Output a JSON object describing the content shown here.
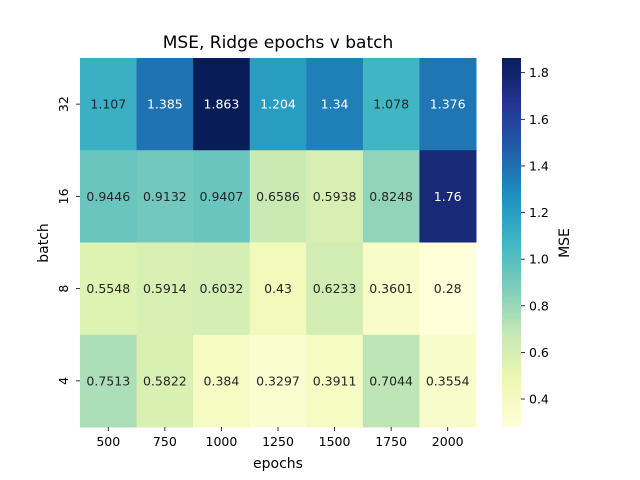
{
  "chart_data": {
    "type": "heatmap",
    "title": "MSE, Ridge epochs v batch",
    "xlabel": "epochs",
    "ylabel": "batch",
    "x_categories": [
      "500",
      "750",
      "1000",
      "1250",
      "1500",
      "1750",
      "2000"
    ],
    "y_categories": [
      "32",
      "16",
      "8",
      "4"
    ],
    "values": [
      [
        1.107,
        1.385,
        1.863,
        1.204,
        1.34,
        1.078,
        1.376
      ],
      [
        0.9446,
        0.9132,
        0.9407,
        0.6586,
        0.5938,
        0.8248,
        1.76
      ],
      [
        0.5548,
        0.5914,
        0.6032,
        0.43,
        0.6233,
        0.3601,
        0.28
      ],
      [
        0.7513,
        0.5822,
        0.384,
        0.3297,
        0.3911,
        0.7044,
        0.3554
      ]
    ],
    "value_labels": [
      [
        "1.107",
        "1.385",
        "1.863",
        "1.204",
        "1.34",
        "1.078",
        "1.376"
      ],
      [
        "0.9446",
        "0.9132",
        "0.9407",
        "0.6586",
        "0.5938",
        "0.8248",
        "1.76"
      ],
      [
        "0.5548",
        "0.5914",
        "0.6032",
        "0.43",
        "0.6233",
        "0.3601",
        "0.28"
      ],
      [
        "0.7513",
        "0.5822",
        "0.384",
        "0.3297",
        "0.3911",
        "0.7044",
        "0.3554"
      ]
    ],
    "colorbar": {
      "label": "MSE",
      "vmin": 0.28,
      "vmax": 1.863,
      "ticks": [
        0.4,
        0.6,
        0.8,
        1.0,
        1.2,
        1.4,
        1.6,
        1.8
      ],
      "tick_labels": [
        "0.4",
        "0.6",
        "0.8",
        "1.0",
        "1.2",
        "1.4",
        "1.6",
        "1.8"
      ]
    },
    "colormap": "YlGnBu",
    "colormap_stops": [
      "#ffffd9",
      "#edf8b1",
      "#c7e9b4",
      "#7fcdbb",
      "#41b6c4",
      "#1d91c0",
      "#225ea8",
      "#253494",
      "#081d58"
    ],
    "annotation_dark_text": "#262626",
    "annotation_light_text": "#ffffff"
  }
}
